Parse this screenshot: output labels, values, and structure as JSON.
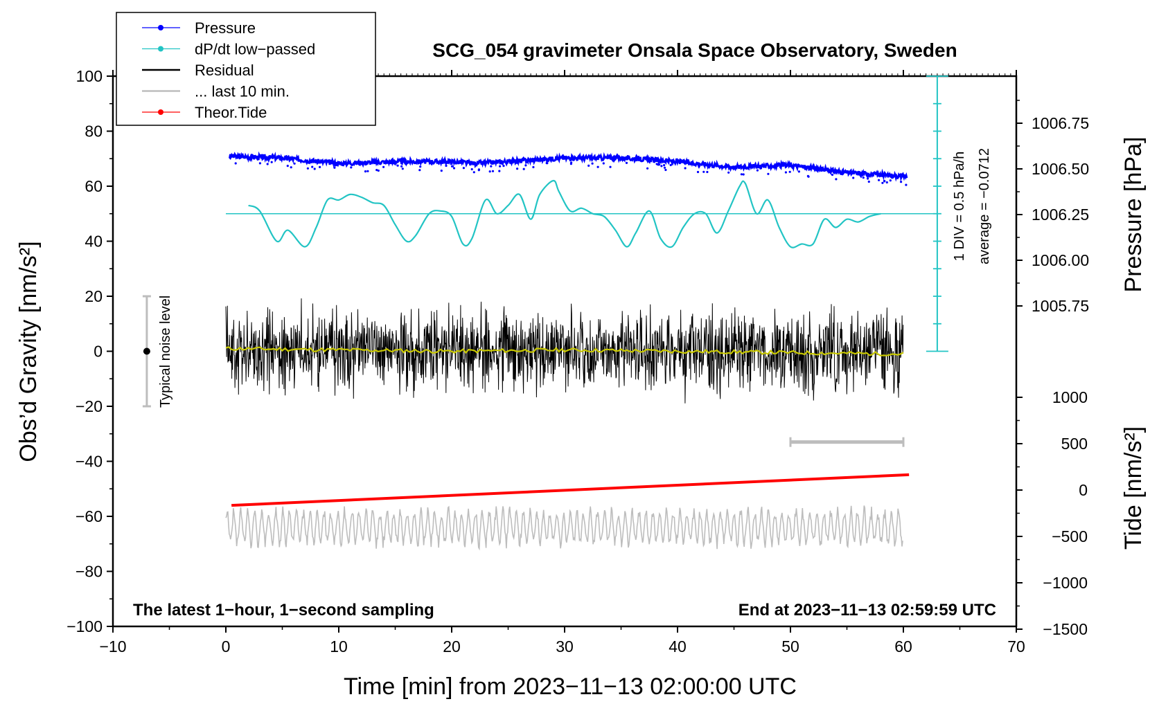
{
  "chart_data": {
    "type": "line",
    "title": "SCG_054 gravimeter Onsala Space Observatory, Sweden",
    "xlabel": "Time [min] from 2023−11−13 02:00:00 UTC",
    "ylabel_left": "Obs’d Gravity [nm/s²]",
    "ylabel_pressure": "Pressure [hPa]",
    "ylabel_tide": "Tide [nm/s²]",
    "xlim": [
      -10,
      70
    ],
    "ylim": [
      -100,
      100
    ],
    "x_ticks": [
      -10,
      0,
      10,
      20,
      30,
      40,
      50,
      60,
      70
    ],
    "x_tick_labels": [
      "−10",
      "0",
      "10",
      "20",
      "30",
      "40",
      "50",
      "60",
      "70"
    ],
    "y_ticks": [
      100,
      80,
      60,
      40,
      20,
      0,
      -20,
      -40,
      -60,
      -80,
      -100
    ],
    "y_tick_labels": [
      "100",
      "80",
      "60",
      "40",
      "20",
      "0",
      "−20",
      "−40",
      "−60",
      "−80",
      "−100"
    ],
    "pressure_ticks": [
      1006.75,
      1006.5,
      1006.25,
      1006.0,
      1005.75
    ],
    "pressure_tick_labels": [
      "1006.75",
      "1006.50",
      "1006.25",
      "1006.00",
      "1005.75"
    ],
    "tide_ticks": [
      1000,
      500,
      0,
      -500,
      -1000,
      -1500
    ],
    "tide_tick_labels": [
      "1000",
      "500",
      "0",
      "−500",
      "−1000",
      "−1500"
    ],
    "legend": {
      "position": "top-left",
      "entries": [
        {
          "label": "Pressure",
          "color": "#0000ff",
          "marker": "dot"
        },
        {
          "label": "dP/dt low−passed",
          "color": "#22c4c4",
          "marker": "dot"
        },
        {
          "label": "Residual",
          "color": "#000000",
          "marker": "line"
        },
        {
          "label": "... last 10 min.",
          "color": "#bdbdbd",
          "marker": "line"
        },
        {
          "label": "Theor.Tide",
          "color": "#ff0000",
          "marker": "dot"
        }
      ]
    },
    "series": [
      {
        "name": "Pressure",
        "unit": "hPa",
        "color": "#0000ff",
        "x": [
          0,
          5,
          10,
          15,
          20,
          22,
          25,
          30,
          35,
          40,
          45,
          50,
          55,
          60
        ],
        "y": [
          1006.57,
          1006.56,
          1006.53,
          1006.54,
          1006.54,
          1006.53,
          1006.54,
          1006.56,
          1006.56,
          1006.54,
          1006.51,
          1006.52,
          1006.48,
          1006.46
        ]
      },
      {
        "name": "dP/dt low−passed",
        "unit": "gravity-axis nm/s² (1 DIV = 0.5 hPa/h, baseline 50)",
        "color": "#22c4c4",
        "x": [
          2,
          3,
          4.5,
          5.5,
          7,
          8,
          9,
          10,
          11,
          12,
          13,
          14,
          15,
          16,
          16.8,
          18,
          19,
          20,
          21,
          21.8,
          23,
          24,
          25,
          26,
          27,
          27.8,
          29,
          29.5,
          30.5,
          31.5,
          32.5,
          33.5,
          34.5,
          35.5,
          36.3,
          37.5,
          38.5,
          39.5,
          40.5,
          41.5,
          42.5,
          43.5,
          44.5,
          45.5,
          46,
          47,
          48,
          49,
          50,
          51,
          52,
          53,
          54,
          55,
          56,
          57,
          58
        ],
        "y": [
          53,
          51,
          40,
          44,
          38,
          45,
          55,
          55,
          57,
          56,
          54,
          53,
          46,
          40,
          42,
          50,
          51,
          49,
          39,
          41,
          55,
          50,
          53,
          57,
          48,
          57,
          62,
          58,
          51,
          52,
          50,
          49,
          44,
          38,
          43,
          51,
          41,
          38,
          45,
          50,
          50,
          43,
          51,
          60,
          61,
          50,
          55,
          45,
          38,
          39,
          39,
          48,
          45,
          48,
          47,
          49,
          50
        ]
      },
      {
        "name": "Residual",
        "unit": "nm/s²",
        "color": "#000000",
        "amplitude": 7,
        "x": [
          0,
          60
        ],
        "y": [
          0,
          0
        ]
      },
      {
        "name": "Residual low-passed",
        "unit": "nm/s²",
        "color": "#c8c800",
        "x": [
          0,
          10,
          20,
          30,
          40,
          50,
          60
        ],
        "y": [
          1,
          0.5,
          0,
          0.5,
          0,
          -0.5,
          -1
        ]
      },
      {
        "name": "... last 10 min.",
        "unit": "gravity-axis nm/s²",
        "color": "#bdbdbd",
        "x": [
          50,
          60
        ],
        "y": [
          -33,
          -33
        ]
      },
      {
        "name": "Theor.Tide",
        "unit": "nm/s²",
        "color": "#ff0000",
        "x": [
          0.5,
          60.5
        ],
        "y": [
          -165,
          165
        ]
      },
      {
        "name": "Tide-derived gray trace",
        "unit": "gravity-axis nm/s²",
        "color": "#bdbdbd",
        "amplitude": 8,
        "x": [
          0,
          60
        ],
        "y": [
          -64,
          -64
        ]
      }
    ],
    "noise_bar": {
      "label": "Typical noise level",
      "x": -7,
      "y_center": 0,
      "y_range": [
        -20,
        20
      ]
    },
    "pressure_scale": {
      "label_div": "1 DIV = 0.5 hPa/h",
      "label_average": "average = −0.0712",
      "x": 63,
      "y_range": [
        0,
        100
      ],
      "divisions": 10
    },
    "note_left": "The latest 1−hour, 1−second sampling",
    "note_right": "End at 2023−11−13 02:59:59 UTC"
  }
}
